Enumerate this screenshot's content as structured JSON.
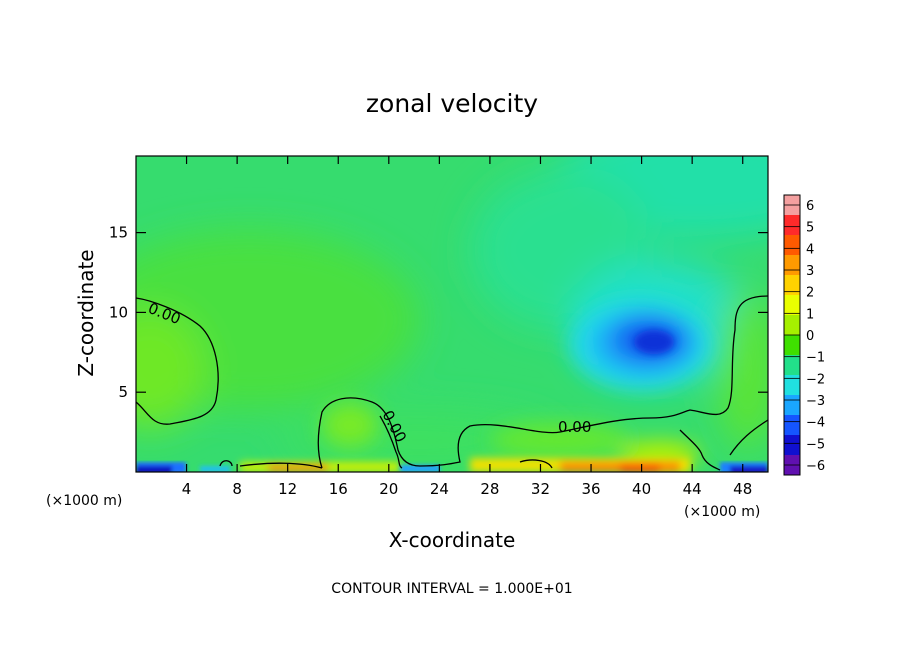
{
  "chart_data": {
    "type": "heatmap",
    "title": "zonal velocity",
    "xlabel": "X-coordinate",
    "ylabel": "Z-coordinate",
    "x_unit": "(×1000 m)",
    "x_ticks": [
      4,
      8,
      12,
      16,
      20,
      24,
      28,
      32,
      36,
      40,
      44,
      48
    ],
    "y_ticks": [
      5,
      10,
      15
    ],
    "xlim": [
      0,
      50
    ],
    "ylim": [
      0,
      19.8
    ],
    "colorbar": {
      "ticks": [
        "6",
        "5",
        "4",
        "3",
        "2",
        "1",
        "0",
        "−1",
        "−2",
        "−3",
        "−4",
        "−5",
        "−6"
      ],
      "colors": [
        "#f4a0a0",
        "#ff2a2a",
        "#ff5a00",
        "#ff9a00",
        "#ffd200",
        "#eaff00",
        "#a6f000",
        "#3fe000",
        "#22e08a",
        "#20e0e0",
        "#1aa6ff",
        "#1555ff",
        "#1010d0",
        "#6010b0"
      ]
    },
    "contour_level_label": "0.00",
    "contour_interval_note": "CONTOUR INTERVAL = 1.000E+01",
    "features": [
      {
        "kind": "minimum",
        "x": 40,
        "z": 8.2,
        "value": -4
      },
      {
        "kind": "maximum",
        "x": 40,
        "z": 0.5,
        "value": 3
      }
    ]
  }
}
